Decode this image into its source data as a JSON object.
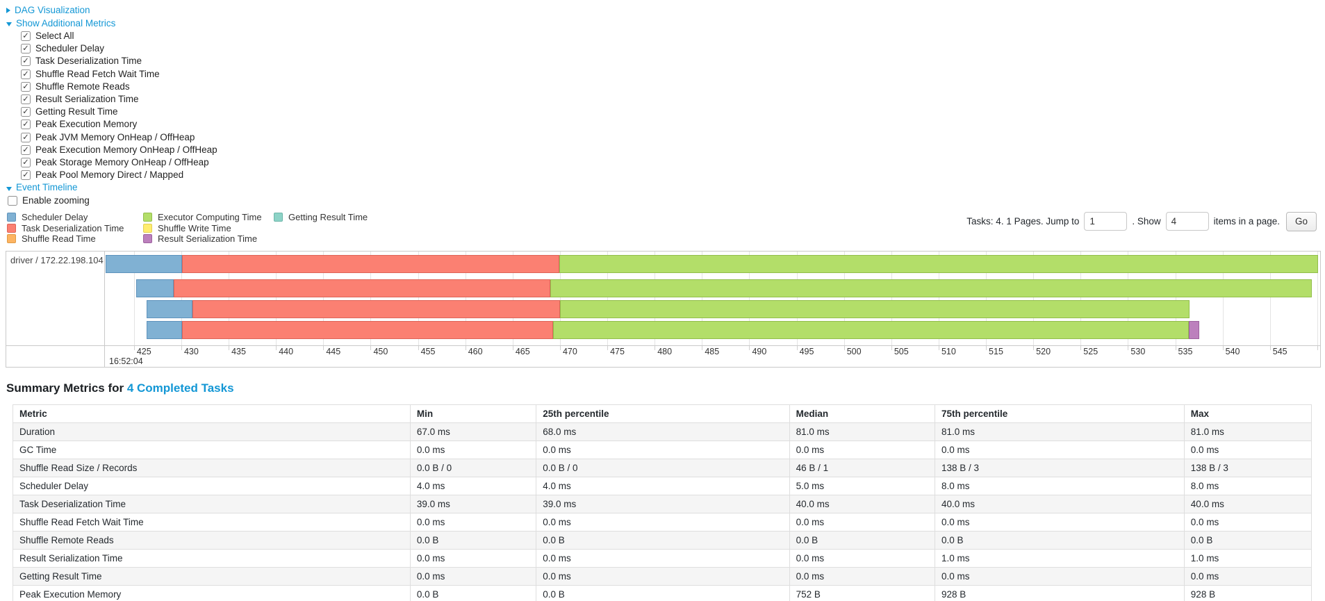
{
  "accent_link_color": "#1397d5",
  "toggles": {
    "dag": {
      "label": "DAG Visualization",
      "state": "collapsed"
    },
    "metrics": {
      "label": "Show Additional Metrics",
      "state": "expanded"
    },
    "timeline": {
      "label": "Event Timeline",
      "state": "expanded"
    }
  },
  "metric_checkboxes": [
    {
      "label": "Select All",
      "checked": true
    },
    {
      "label": "Scheduler Delay",
      "checked": true
    },
    {
      "label": "Task Deserialization Time",
      "checked": true
    },
    {
      "label": "Shuffle Read Fetch Wait Time",
      "checked": true
    },
    {
      "label": "Shuffle Remote Reads",
      "checked": true
    },
    {
      "label": "Result Serialization Time",
      "checked": true
    },
    {
      "label": "Getting Result Time",
      "checked": true
    },
    {
      "label": "Peak Execution Memory",
      "checked": true
    },
    {
      "label": "Peak JVM Memory OnHeap / OffHeap",
      "checked": true
    },
    {
      "label": "Peak Execution Memory OnHeap / OffHeap",
      "checked": true
    },
    {
      "label": "Peak Storage Memory OnHeap / OffHeap",
      "checked": true
    },
    {
      "label": "Peak Pool Memory Direct / Mapped",
      "checked": true
    }
  ],
  "enable_zooming": {
    "label": "Enable zooming",
    "checked": false
  },
  "legend": {
    "items": [
      {
        "id": "scheduler_delay",
        "label": "Scheduler Delay",
        "color": "#80B1D3",
        "border": "#5E93BC"
      },
      {
        "id": "task_deserialization",
        "label": "Task Deserialization Time",
        "color": "#FB8072",
        "border": "#DE6458"
      },
      {
        "id": "shuffle_read",
        "label": "Shuffle Read Time",
        "color": "#FDB462",
        "border": "#E09A43"
      },
      {
        "id": "executor_computing",
        "label": "Executor Computing Time",
        "color": "#B3DE69",
        "border": "#92BE4B"
      },
      {
        "id": "shuffle_write",
        "label": "Shuffle Write Time",
        "color": "#FFED6F",
        "border": "#E3CF53"
      },
      {
        "id": "result_serialization",
        "label": "Result Serialization Time",
        "color": "#BC80BD",
        "border": "#9C619E"
      },
      {
        "id": "getting_result",
        "label": "Getting Result Time",
        "color": "#8DD3C7",
        "border": "#6DB6A9"
      }
    ]
  },
  "pagination": {
    "tasks_label": "Tasks: 4. 1 Pages. Jump to",
    "jump_value": "1",
    "show_label": ". Show",
    "show_value": "4",
    "items_label": "items in a page.",
    "go_label": "Go"
  },
  "chart_data": {
    "type": "timeline",
    "executor_label": "driver / 172.22.198.104",
    "axis": {
      "min": 422.0,
      "max": 550.3,
      "tick_start": 425,
      "tick_step": 5,
      "tick_end": 550,
      "time_label": "16:52:04",
      "unit": "ms within second"
    },
    "row_tops": [
      5,
      40,
      70,
      100
    ],
    "tasks": [
      {
        "row": 0,
        "segments": [
          {
            "type": "scheduler_delay",
            "start": 422.0,
            "end": 430.1
          },
          {
            "type": "task_deserialization",
            "start": 430.1,
            "end": 469.9
          },
          {
            "type": "executor_computing",
            "start": 469.9,
            "end": 550.1
          }
        ]
      },
      {
        "row": 1,
        "segments": [
          {
            "type": "scheduler_delay",
            "start": 425.2,
            "end": 429.2
          },
          {
            "type": "task_deserialization",
            "start": 429.2,
            "end": 469.0
          },
          {
            "type": "executor_computing",
            "start": 469.0,
            "end": 549.4
          }
        ]
      },
      {
        "row": 2,
        "segments": [
          {
            "type": "scheduler_delay",
            "start": 426.3,
            "end": 431.2
          },
          {
            "type": "task_deserialization",
            "start": 431.2,
            "end": 470.0
          },
          {
            "type": "executor_computing",
            "start": 470.0,
            "end": 536.5
          }
        ]
      },
      {
        "row": 3,
        "segments": [
          {
            "type": "scheduler_delay",
            "start": 426.3,
            "end": 430.1
          },
          {
            "type": "task_deserialization",
            "start": 430.1,
            "end": 469.3
          },
          {
            "type": "executor_computing",
            "start": 469.3,
            "end": 536.4
          },
          {
            "type": "result_serialization",
            "start": 536.4,
            "end": 537.5
          }
        ]
      }
    ]
  },
  "summary": {
    "title_prefix": "Summary Metrics for ",
    "title_link": "4 Completed Tasks",
    "table": {
      "headers": [
        "Metric",
        "Min",
        "25th percentile",
        "Median",
        "75th percentile",
        "Max"
      ],
      "rows": [
        [
          "Duration",
          "67.0 ms",
          "68.0 ms",
          "81.0 ms",
          "81.0 ms",
          "81.0 ms"
        ],
        [
          "GC Time",
          "0.0 ms",
          "0.0 ms",
          "0.0 ms",
          "0.0 ms",
          "0.0 ms"
        ],
        [
          "Shuffle Read Size / Records",
          "0.0 B / 0",
          "0.0 B / 0",
          "46 B / 1",
          "138 B / 3",
          "138 B / 3"
        ],
        [
          "Scheduler Delay",
          "4.0 ms",
          "4.0 ms",
          "5.0 ms",
          "8.0 ms",
          "8.0 ms"
        ],
        [
          "Task Deserialization Time",
          "39.0 ms",
          "39.0 ms",
          "40.0 ms",
          "40.0 ms",
          "40.0 ms"
        ],
        [
          "Shuffle Read Fetch Wait Time",
          "0.0 ms",
          "0.0 ms",
          "0.0 ms",
          "0.0 ms",
          "0.0 ms"
        ],
        [
          "Shuffle Remote Reads",
          "0.0 B",
          "0.0 B",
          "0.0 B",
          "0.0 B",
          "0.0 B"
        ],
        [
          "Result Serialization Time",
          "0.0 ms",
          "0.0 ms",
          "0.0 ms",
          "1.0 ms",
          "1.0 ms"
        ],
        [
          "Getting Result Time",
          "0.0 ms",
          "0.0 ms",
          "0.0 ms",
          "0.0 ms",
          "0.0 ms"
        ],
        [
          "Peak Execution Memory",
          "0.0 B",
          "0.0 B",
          "752 B",
          "928 B",
          "928 B"
        ]
      ]
    }
  }
}
